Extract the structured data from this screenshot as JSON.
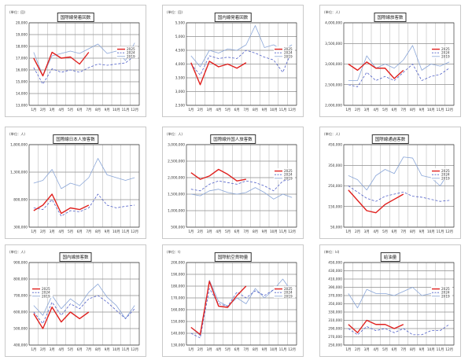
{
  "legend_labels": [
    "2025",
    "2024",
    "2019"
  ],
  "months": [
    "1月",
    "2月",
    "3月",
    "4月",
    "5月",
    "6月",
    "7月",
    "8月",
    "9月",
    "10月",
    "11月",
    "12月"
  ],
  "colors": {
    "y2025": "#e0201e",
    "y2024": "#5060c8",
    "y2019": "#8aa6d8"
  },
  "chart_data": [
    {
      "type": "line",
      "title": "国際線発着回数",
      "unit": "(単位：回)",
      "y_ticks": [
        "20,000",
        "19,000",
        "18,000",
        "17,000",
        "16,000",
        "15,000",
        "14,000",
        "13,000"
      ],
      "ylim": [
        13000,
        20000
      ],
      "legend_position": "right",
      "series": [
        {
          "name": "2025",
          "values": [
            17000,
            15500,
            17500,
            17000,
            17100,
            16500,
            17500
          ]
        },
        {
          "name": "2024",
          "values": [
            16200,
            14800,
            16100,
            15800,
            16000,
            15800,
            16200,
            16500,
            16400,
            16500,
            16600,
            17200
          ]
        },
        {
          "name": "2019",
          "values": [
            17500,
            15500,
            17200,
            17400,
            17600,
            17400,
            17800,
            18200,
            17400,
            17600,
            16800,
            18300
          ]
        }
      ]
    },
    {
      "type": "line",
      "title": "国内線発着回数",
      "unit": "(単位：回)",
      "y_ticks": [
        "5,500",
        "5,000",
        "4,500",
        "4,000",
        "3,500",
        "3,000",
        "2,500"
      ],
      "ylim": [
        2500,
        5500
      ],
      "legend_position": "right",
      "series": [
        {
          "name": "2025",
          "values": [
            4050,
            3250,
            4100,
            3900,
            4000,
            3850,
            4050
          ]
        },
        {
          "name": "2024",
          "values": [
            4000,
            3600,
            4300,
            4200,
            4250,
            4200,
            4500,
            4400,
            4250,
            4150,
            3700,
            4500
          ]
        },
        {
          "name": "2019",
          "values": [
            4300,
            3900,
            4500,
            4400,
            4550,
            4500,
            4700,
            5400,
            4600,
            4700,
            4500,
            4700
          ]
        }
      ]
    },
    {
      "type": "line",
      "title": "国際線旅客数",
      "unit": "(単位：人)",
      "y_ticks": [
        "4,000,000",
        "3,500,000",
        "3,000,000",
        "2,500,000",
        "2,000,000"
      ],
      "ylim": [
        2000000,
        4000000
      ],
      "legend_position": "right",
      "series": [
        {
          "name": "2025",
          "values": [
            3000000,
            2850000,
            3050000,
            2900000,
            2900000,
            2650000,
            2850000
          ]
        },
        {
          "name": "2024",
          "values": [
            2500000,
            2450000,
            2800000,
            2600000,
            2700000,
            2600000,
            2800000,
            3000000,
            2600000,
            2700000,
            2750000,
            2900000
          ]
        },
        {
          "name": "2019",
          "values": [
            2600000,
            2600000,
            3200000,
            2900000,
            3000000,
            2900000,
            3100000,
            3450000,
            2850000,
            3000000,
            2950000,
            3050000
          ]
        }
      ]
    },
    {
      "type": "line",
      "title": "国際線日本人旅客数",
      "unit": "(単位：人)",
      "y_ticks": [
        "1,800,000",
        "1,300,000",
        "800,000",
        "300,000"
      ],
      "ylim": [
        300000,
        1800000
      ],
      "legend_position": "none",
      "series": [
        {
          "name": "2025",
          "values": [
            600000,
            700000,
            900000,
            550000,
            650000,
            620000,
            700000
          ]
        },
        {
          "name": "2024",
          "values": [
            650000,
            620000,
            800000,
            500000,
            600000,
            580000,
            650000,
            900000,
            700000,
            650000,
            680000,
            700000
          ]
        },
        {
          "name": "2019",
          "values": [
            1100000,
            1150000,
            1350000,
            1000000,
            1100000,
            1050000,
            1200000,
            1550000,
            1250000,
            1200000,
            1150000,
            1200000
          ]
        }
      ]
    },
    {
      "type": "line",
      "title": "国際線外国人旅客数",
      "unit": "(単位：人)",
      "y_ticks": [
        "3,000,000",
        "2,500,000",
        "2,000,000",
        "1,500,000",
        "1,000,000",
        "500,000"
      ],
      "ylim": [
        500000,
        3000000
      ],
      "legend_position": "right",
      "series": [
        {
          "name": "2025",
          "values": [
            2150000,
            1950000,
            2050000,
            2250000,
            2100000,
            1900000,
            1950000
          ]
        },
        {
          "name": "2024",
          "values": [
            1650000,
            1600000,
            1800000,
            1900000,
            1850000,
            1800000,
            1900000,
            1850000,
            1750000,
            1600000,
            1900000,
            1950000
          ]
        },
        {
          "name": "2019",
          "values": [
            1500000,
            1450000,
            1600000,
            1650000,
            1550000,
            1500000,
            1550000,
            1700000,
            1550000,
            1350000,
            1500000,
            1400000
          ]
        }
      ]
    },
    {
      "type": "line",
      "title": "国際線通過客数",
      "unit": "(単位：人)",
      "y_ticks": [
        "450,000",
        "350,000",
        "250,000",
        "150,000",
        "50,000"
      ],
      "ylim": [
        50000,
        450000
      ],
      "legend_position": "right",
      "series": [
        {
          "name": "2025",
          "values": [
            230000,
            180000,
            130000,
            120000,
            160000,
            185000,
            210000
          ]
        },
        {
          "name": "2024",
          "values": [
            250000,
            220000,
            190000,
            175000,
            200000,
            210000,
            220000,
            200000,
            195000,
            185000,
            175000,
            180000
          ]
        },
        {
          "name": "2019",
          "values": [
            300000,
            280000,
            230000,
            300000,
            330000,
            310000,
            390000,
            385000,
            300000,
            290000,
            250000,
            320000
          ]
        }
      ]
    },
    {
      "type": "line",
      "title": "国内線旅客数",
      "unit": "(単位：人)",
      "y_ticks": [
        "900,000",
        "800,000",
        "700,000",
        "600,000",
        "500,000",
        "400,000"
      ],
      "ylim": [
        400000,
        900000
      ],
      "legend_position": "left",
      "series": [
        {
          "name": "2025",
          "values": [
            590000,
            500000,
            630000,
            540000,
            600000,
            560000,
            600000
          ]
        },
        {
          "name": "2024",
          "values": [
            600000,
            530000,
            660000,
            580000,
            650000,
            620000,
            680000,
            700000,
            660000,
            610000,
            560000,
            620000
          ]
        },
        {
          "name": "2019",
          "values": [
            640000,
            580000,
            700000,
            620000,
            680000,
            640000,
            720000,
            770000,
            690000,
            640000,
            560000,
            640000
          ]
        }
      ]
    },
    {
      "type": "line",
      "title": "国際航空貨物量",
      "unit": "(単位：t)",
      "y_ticks": [
        "200,000",
        "190,000",
        "180,000",
        "170,000",
        "160,000",
        "150,000",
        "140,000",
        "130,000"
      ],
      "ylim": [
        130000,
        200000
      ],
      "legend_position": "right",
      "series": [
        {
          "name": "2025",
          "values": [
            145000,
            139000,
            184000,
            163000,
            162000,
            172000,
            180000
          ]
        },
        {
          "name": "2024",
          "values": [
            140000,
            136000,
            178000,
            165000,
            163000,
            175000,
            170000,
            176000,
            172000,
            177000,
            175000,
            180000
          ]
        },
        {
          "name": "2019",
          "values": [
            145000,
            138000,
            185000,
            167000,
            163000,
            170000,
            165000,
            178000,
            170000,
            177000,
            186000,
            175000
          ]
        }
      ]
    },
    {
      "type": "line",
      "title": "給油量",
      "unit": "(単位：kl)",
      "y_ticks": [
        "450,000",
        "430,000",
        "410,000",
        "390,000",
        "370,000",
        "350,000",
        "330,000",
        "310,000",
        "290,000",
        "270,000",
        "250,000"
      ],
      "ylim": [
        250000,
        450000
      ],
      "legend_position": "right",
      "series": [
        {
          "name": "2025",
          "values": [
            300000,
            280000,
            310000,
            300000,
            300000,
            290000,
            300000
          ]
        },
        {
          "name": "2024",
          "values": [
            290000,
            275000,
            295000,
            285000,
            290000,
            280000,
            290000,
            275000,
            275000,
            285000,
            285000,
            300000
          ]
        },
        {
          "name": "2019",
          "values": [
            375000,
            340000,
            385000,
            375000,
            375000,
            370000,
            380000,
            390000,
            370000,
            375000,
            375000,
            385000
          ]
        }
      ]
    }
  ]
}
